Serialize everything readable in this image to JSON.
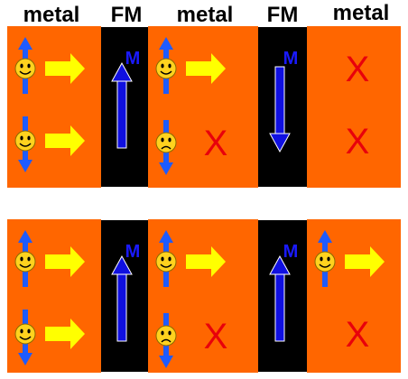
{
  "headers": [
    "metal",
    "FM",
    "metal",
    "FM",
    "metal"
  ],
  "magnetization_label": "M",
  "blocked_mark": "X",
  "colors": {
    "metal": "#ff6600",
    "ferromagnet": "#000000",
    "spin_arrow": "#1e5bff",
    "magnetization_arrow": "#1010e0",
    "current_arrow": "#ffff00",
    "face": "#ffd21e",
    "blocked_mark": "#e8000b"
  },
  "rows": [
    {
      "id": "antiparallel",
      "fm_magnetization": [
        "up",
        "down"
      ],
      "regions": [
        {
          "spin_up": "transmitted",
          "spin_down": "transmitted"
        },
        {
          "spin_up": "transmitted",
          "spin_down": "blocked"
        },
        {
          "spin_up": "blocked",
          "spin_down": "blocked"
        }
      ]
    },
    {
      "id": "parallel",
      "fm_magnetization": [
        "up",
        "up"
      ],
      "regions": [
        {
          "spin_up": "transmitted",
          "spin_down": "transmitted"
        },
        {
          "spin_up": "transmitted",
          "spin_down": "blocked"
        },
        {
          "spin_up": "transmitted",
          "spin_down": "blocked"
        }
      ]
    }
  ]
}
